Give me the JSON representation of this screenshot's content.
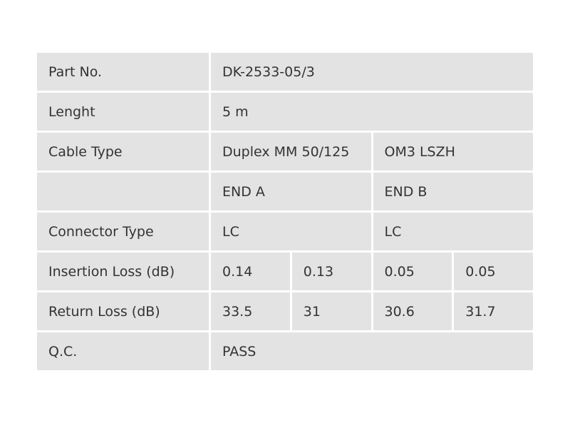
{
  "table": {
    "rows": [
      {
        "label": "Part No.",
        "cells": [
          "DK-2533-05/3"
        ]
      },
      {
        "label": "Lenght",
        "cells": [
          "5 m"
        ]
      },
      {
        "label": "Cable Type",
        "cells": [
          "Duplex MM 50/125",
          "OM3 LSZH"
        ]
      },
      {
        "cells": [
          "END A",
          "END B"
        ]
      },
      {
        "label": "Connector Type",
        "cells": [
          "LC",
          "LC"
        ]
      },
      {
        "label": "Insertion Loss (dB)",
        "cells": [
          "0.14",
          "0.13",
          "0.05",
          "0.05"
        ]
      },
      {
        "label": "Return Loss (dB)",
        "cells": [
          "33.5",
          "31",
          "30.6",
          "31.7"
        ]
      },
      {
        "label": "Q.C.",
        "cells": [
          "PASS"
        ]
      }
    ]
  }
}
